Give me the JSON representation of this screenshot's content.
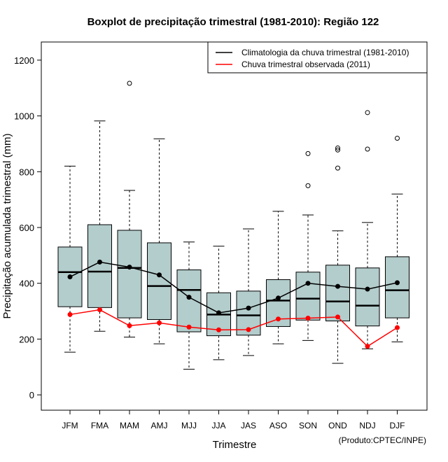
{
  "chart_data": {
    "type": "boxplot",
    "title": "Boxplot de precipitação trimestral (1981-2010): Região 122",
    "xlabel": "Trimestre",
    "ylabel": "Precipitação acumulada trimestral (mm)",
    "ylim": [
      -55,
      1265
    ],
    "yticks": [
      0,
      200,
      400,
      600,
      800,
      1000,
      1200
    ],
    "categories": [
      "JFM",
      "FMA",
      "MAM",
      "AMJ",
      "MJJ",
      "JJA",
      "JAS",
      "ASO",
      "SON",
      "OND",
      "NDJ",
      "DJF"
    ],
    "boxes": [
      {
        "whisker_low": 153,
        "q1": 316,
        "median": 440,
        "q3": 530,
        "whisker_high": 820,
        "outliers": []
      },
      {
        "whisker_low": 228,
        "q1": 313,
        "median": 442,
        "q3": 610,
        "whisker_high": 982,
        "outliers": []
      },
      {
        "whisker_low": 207,
        "q1": 276,
        "median": 455,
        "q3": 590,
        "whisker_high": 733,
        "outliers": [
          1117
        ]
      },
      {
        "whisker_low": 183,
        "q1": 270,
        "median": 390,
        "q3": 545,
        "whisker_high": 918,
        "outliers": []
      },
      {
        "whisker_low": 92,
        "q1": 226,
        "median": 376,
        "q3": 448,
        "whisker_high": 548,
        "outliers": []
      },
      {
        "whisker_low": 126,
        "q1": 212,
        "median": 288,
        "q3": 366,
        "whisker_high": 533,
        "outliers": []
      },
      {
        "whisker_low": 141,
        "q1": 214,
        "median": 285,
        "q3": 372,
        "whisker_high": 595,
        "outliers": []
      },
      {
        "whisker_low": 183,
        "q1": 245,
        "median": 338,
        "q3": 413,
        "whisker_high": 658,
        "outliers": []
      },
      {
        "whisker_low": 195,
        "q1": 268,
        "median": 345,
        "q3": 440,
        "whisker_high": 645,
        "outliers": [
          750,
          865
        ]
      },
      {
        "whisker_low": 113,
        "q1": 265,
        "median": 335,
        "q3": 465,
        "whisker_high": 588,
        "outliers": [
          813,
          878,
          885
        ]
      },
      {
        "whisker_low": 165,
        "q1": 247,
        "median": 320,
        "q3": 455,
        "whisker_high": 618,
        "outliers": [
          881,
          1012
        ]
      },
      {
        "whisker_low": 190,
        "q1": 276,
        "median": 375,
        "q3": 495,
        "whisker_high": 720,
        "outliers": [
          920
        ]
      }
    ],
    "series": [
      {
        "name": "Climatologia da chuva trimestral (1981-2010)",
        "color": "#000000",
        "values": [
          423,
          476,
          458,
          430,
          350,
          294,
          311,
          347,
          400,
          389,
          379,
          402
        ]
      },
      {
        "name": "Chuva trimestral observada (2011)",
        "color": "#ff0000",
        "values": [
          288,
          305,
          248,
          258,
          243,
          233,
          234,
          272,
          275,
          279,
          174,
          241
        ]
      }
    ],
    "box_fill": "#b3cccc",
    "legend_position": "top-right"
  },
  "credit": "(Produto:CPTEC/INPE)"
}
